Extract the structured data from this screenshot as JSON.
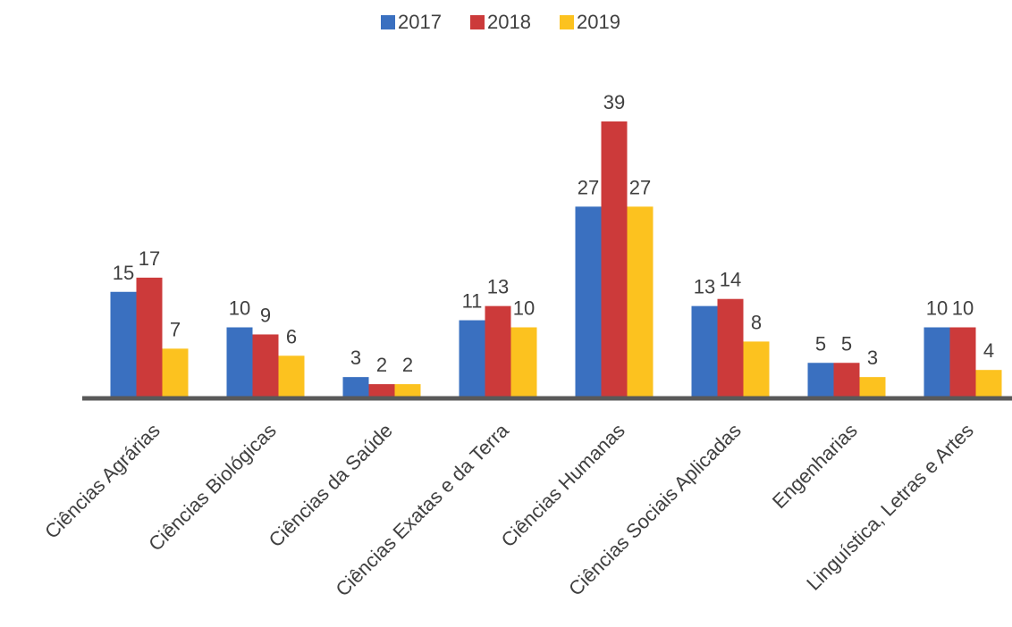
{
  "chart_data": {
    "type": "bar",
    "categories": [
      "Ciências Agrárias",
      "Ciências Biológicas",
      "Ciências da Saúde",
      "Ciências Exatas e da Terra",
      "Ciências Humanas",
      "Ciências Sociais Aplicadas",
      "Engenharias",
      "Linguística, Letras e Artes"
    ],
    "series": [
      {
        "name": "2017",
        "color": "#3a70c0",
        "values": [
          15,
          10,
          3,
          11,
          27,
          13,
          5,
          10
        ]
      },
      {
        "name": "2018",
        "color": "#cc3a3a",
        "values": [
          17,
          9,
          2,
          13,
          39,
          14,
          5,
          10
        ]
      },
      {
        "name": "2019",
        "color": "#fcc21f",
        "values": [
          7,
          6,
          2,
          10,
          27,
          8,
          3,
          4
        ]
      }
    ],
    "ylim": [
      0,
      40
    ],
    "legend": "top"
  }
}
